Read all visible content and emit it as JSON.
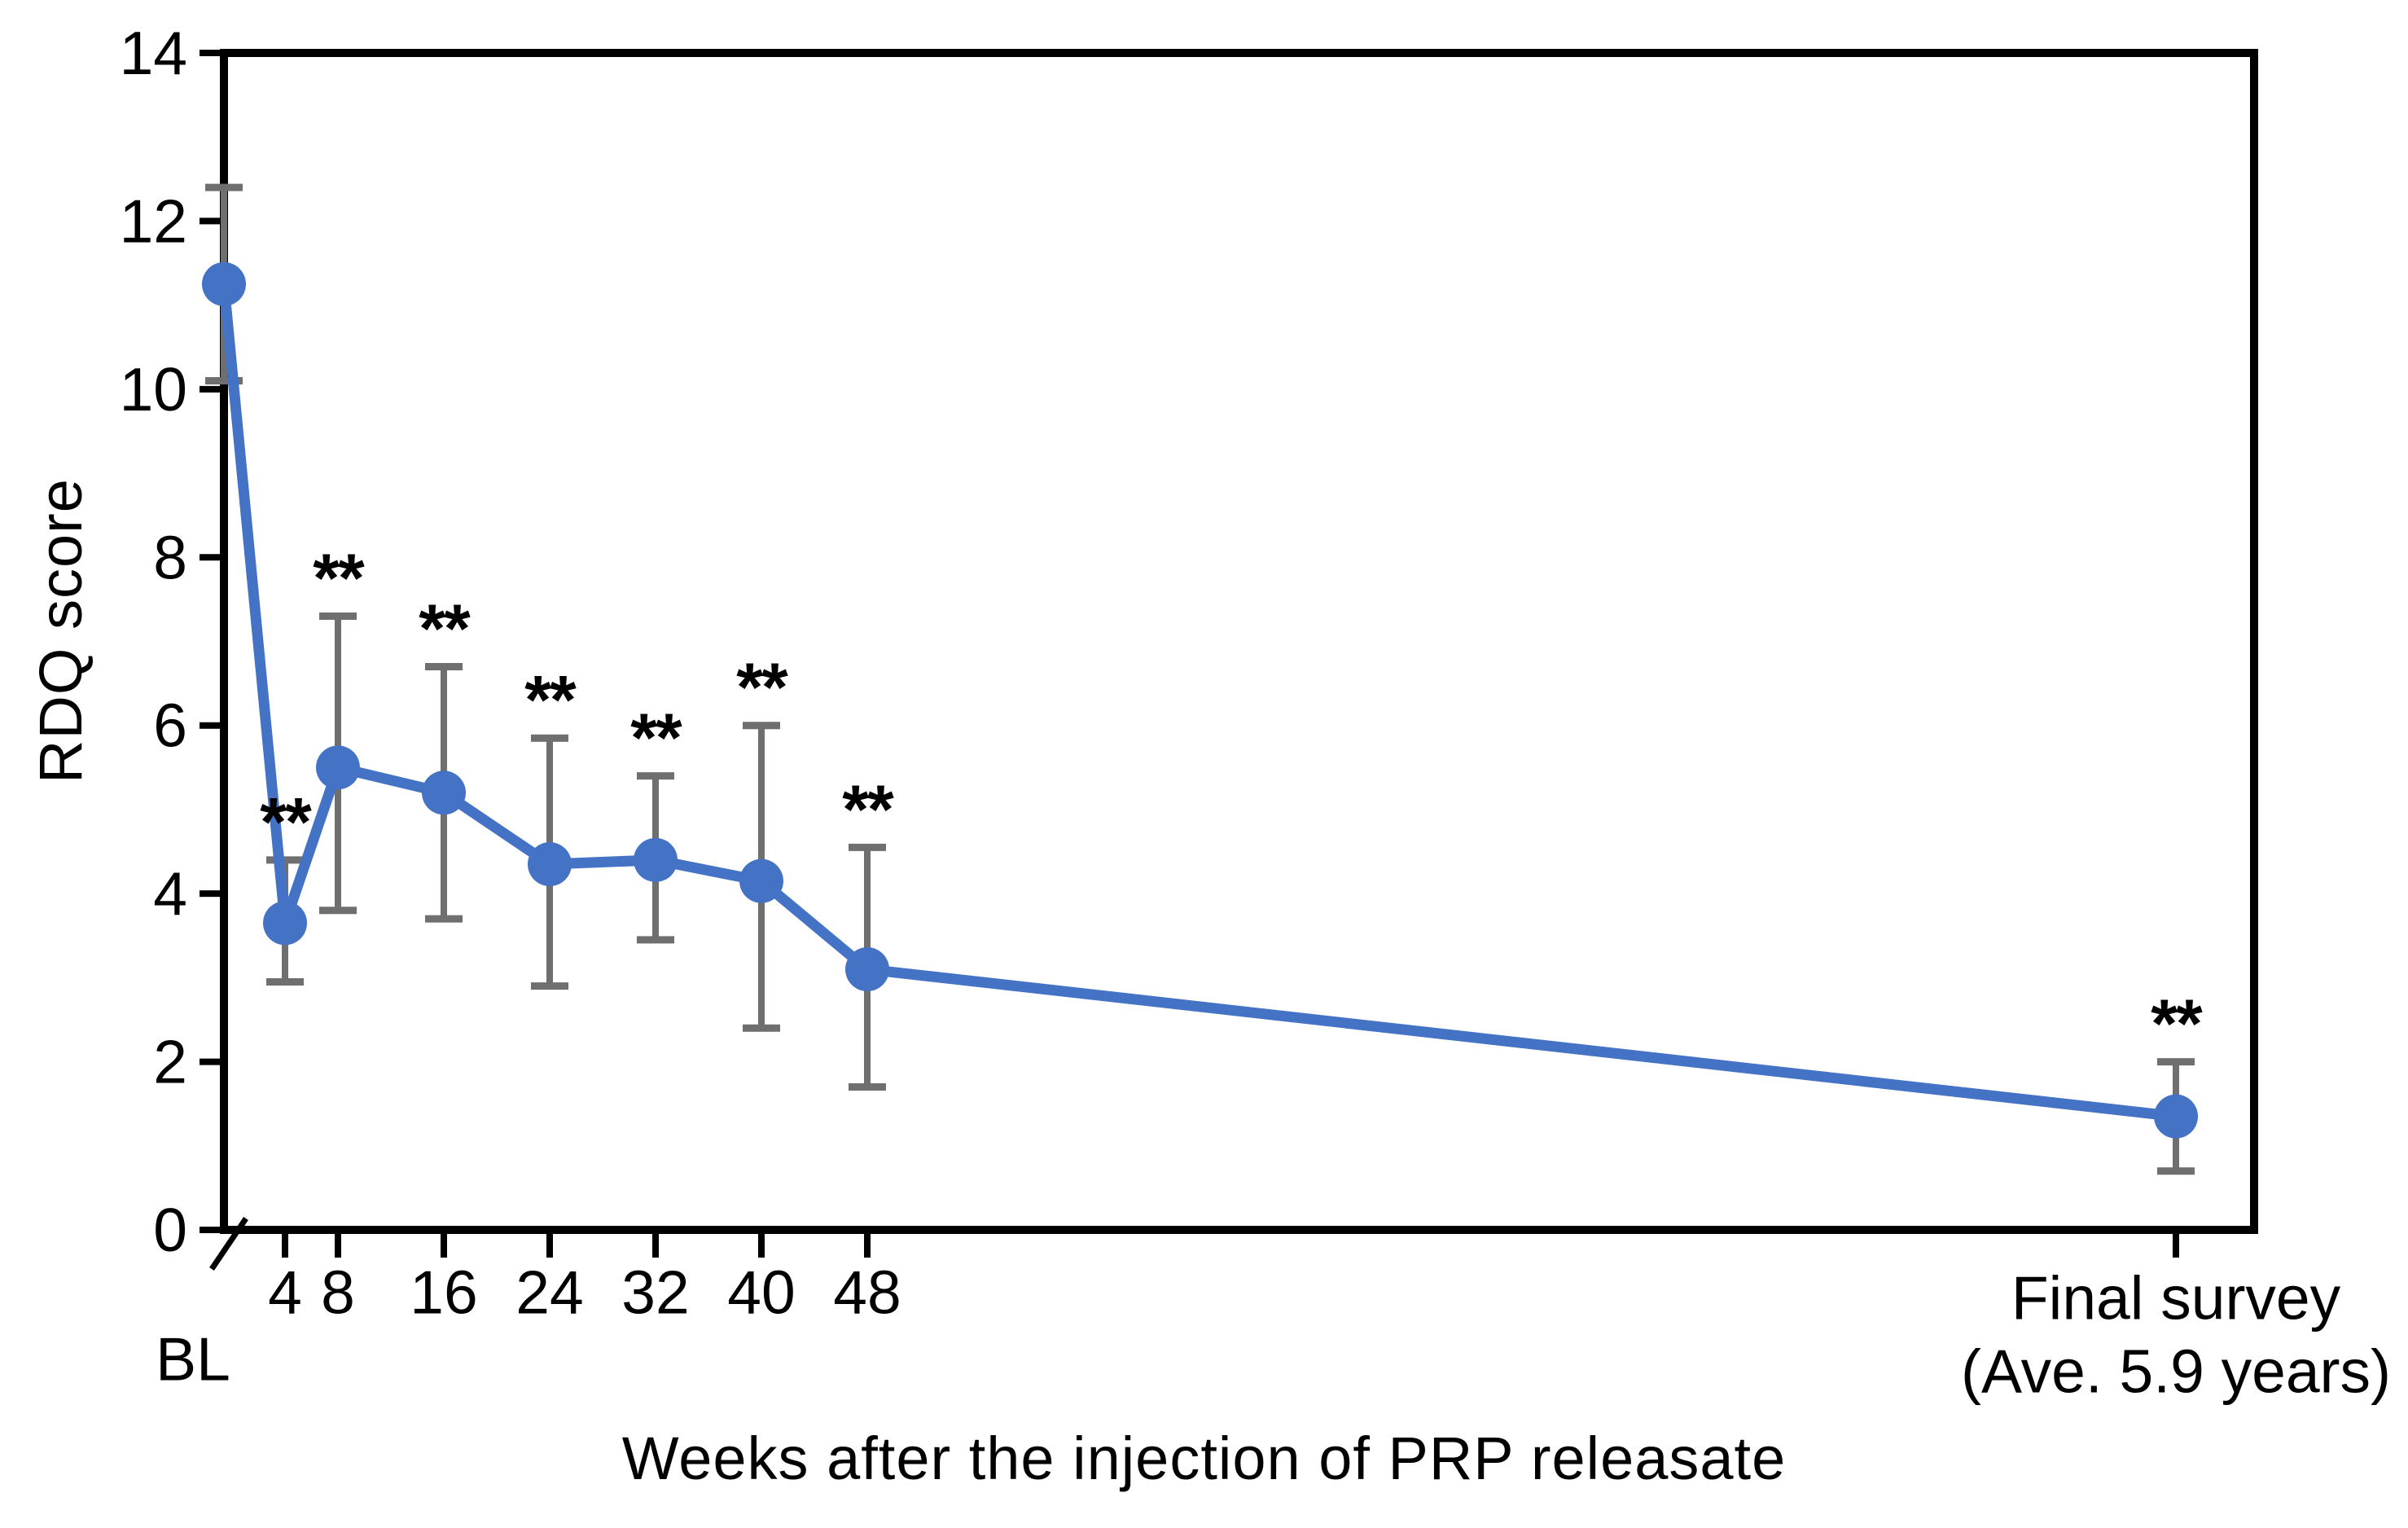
{
  "chart_data": {
    "type": "line",
    "title": "",
    "ylabel": "RDQ score",
    "xlabel": "Weeks after the injection of PRP releasate",
    "ylim": [
      0,
      14
    ],
    "yticks": [
      0,
      2,
      4,
      6,
      8,
      10,
      12,
      14
    ],
    "grid": false,
    "legend_position": "none",
    "line_color": "#4472C4",
    "marker_color": "#4472C4",
    "error_bar_color": "#6f6f6f",
    "axis_color": "#000000",
    "significance_marker": "**",
    "axis_break_after_baseline": true,
    "x_axis_unit": "weeks",
    "points": [
      {
        "label": "BL",
        "week": 0,
        "value": 11.25,
        "err_low": 10.1,
        "err_high": 12.4,
        "sig": false
      },
      {
        "label": "4",
        "week": 4,
        "value": 3.65,
        "err_low": 2.95,
        "err_high": 4.4,
        "sig": true
      },
      {
        "label": "8",
        "week": 8,
        "value": 5.5,
        "err_low": 3.8,
        "err_high": 7.3,
        "sig": true
      },
      {
        "label": "16",
        "week": 16,
        "value": 5.2,
        "err_low": 3.7,
        "err_high": 6.7,
        "sig": true
      },
      {
        "label": "24",
        "week": 24,
        "value": 4.35,
        "err_low": 2.9,
        "err_high": 5.85,
        "sig": true
      },
      {
        "label": "32",
        "week": 32,
        "value": 4.4,
        "err_low": 3.45,
        "err_high": 5.4,
        "sig": true
      },
      {
        "label": "40",
        "week": 40,
        "value": 4.15,
        "err_low": 2.4,
        "err_high": 6.0,
        "sig": true
      },
      {
        "label": "48",
        "week": 48,
        "value": 3.1,
        "err_low": 1.7,
        "err_high": 4.55,
        "sig": true
      },
      {
        "label": "Final survey",
        "week": null,
        "value": 1.35,
        "err_low": 0.7,
        "err_high": 2.0,
        "sig": true,
        "label_line2": "(Ave. 5.9 years)"
      }
    ]
  }
}
